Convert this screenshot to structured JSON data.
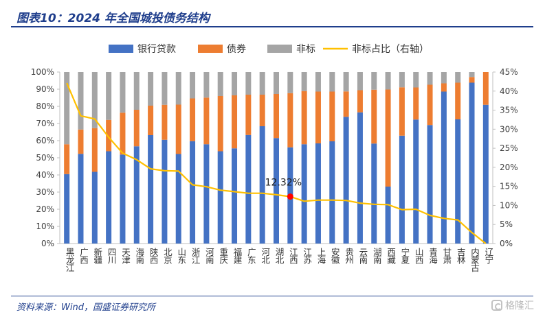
{
  "header": {
    "title": "图表10：2024 年全国城投债务结构"
  },
  "footer": {
    "source": "资料来源：Wind，国盛证券研究所",
    "watermark": "格隆汇"
  },
  "chart_data": {
    "type": "bar",
    "stacked": true,
    "percent_stacked": true,
    "categories": [
      "黑龙江",
      "广西",
      "新疆",
      "四川",
      "天津",
      "海南",
      "陕西",
      "北京",
      "山东",
      "浙江",
      "河南",
      "重庆",
      "福建",
      "广东",
      "河北",
      "湖北",
      "江西",
      "江苏",
      "上海",
      "安徽",
      "贵州",
      "云南",
      "湖南",
      "西藏",
      "宁夏",
      "山西",
      "青海",
      "甘肃",
      "吉林",
      "内蒙古",
      "辽宁"
    ],
    "series": [
      {
        "name": "银行贷款",
        "color": "#4472c4",
        "axis": "left",
        "values": [
          40.5,
          52.3,
          41.8,
          53.8,
          51.9,
          56.7,
          63.2,
          60.5,
          52.2,
          59.7,
          57.9,
          53.8,
          55.5,
          63.3,
          68.4,
          61.5,
          56.1,
          57.9,
          58.4,
          59.6,
          73.9,
          76.5,
          58.3,
          33.2,
          62.9,
          72.3,
          69.1,
          88.6,
          72.4,
          93.8,
          80.9
        ]
      },
      {
        "name": "债券",
        "color": "#ed7d31",
        "axis": "left",
        "values": [
          17.4,
          14.2,
          25.5,
          18.3,
          24.4,
          21.3,
          17.2,
          20.4,
          28.8,
          24.9,
          27.2,
          32.2,
          30.9,
          23.5,
          18.4,
          25.7,
          31.6,
          31.0,
          30.2,
          29.0,
          14.8,
          12.9,
          31.4,
          56.6,
          28.2,
          18.7,
          23.5,
          4.8,
          21.4,
          3.3,
          19.1
        ]
      },
      {
        "name": "非标",
        "color": "#a5a5a5",
        "axis": "left",
        "values": [
          42.1,
          33.5,
          32.7,
          27.9,
          23.7,
          22.0,
          19.6,
          19.1,
          19.0,
          15.4,
          14.9,
          14.0,
          13.6,
          13.2,
          13.2,
          12.8,
          12.32,
          11.1,
          11.4,
          11.4,
          11.3,
          10.6,
          10.3,
          10.2,
          8.9,
          9.0,
          7.4,
          6.6,
          6.2,
          2.9,
          0.0
        ]
      },
      {
        "name": "非标占比（右轴）",
        "color": "#ffc000",
        "axis": "right",
        "type": "line",
        "values": [
          42.1,
          33.5,
          32.7,
          27.9,
          23.7,
          22.0,
          19.6,
          19.1,
          19.0,
          15.4,
          14.9,
          14.0,
          13.6,
          13.2,
          13.2,
          12.8,
          12.32,
          11.1,
          11.4,
          11.4,
          11.3,
          10.6,
          10.3,
          10.2,
          8.9,
          9.0,
          7.4,
          6.6,
          6.2,
          2.9,
          0.0
        ]
      }
    ],
    "left_axis": {
      "min": 0,
      "max": 100,
      "step": 10,
      "ticks": [
        "0%",
        "10%",
        "20%",
        "30%",
        "40%",
        "50%",
        "60%",
        "70%",
        "80%",
        "90%",
        "100%"
      ]
    },
    "right_axis": {
      "min": 0,
      "max": 45,
      "step": 5,
      "ticks": [
        "0%",
        "5%",
        "10%",
        "15%",
        "20%",
        "25%",
        "30%",
        "35%",
        "40%",
        "45%"
      ]
    },
    "legend": {
      "position": "top",
      "items": [
        "银行贷款",
        "债券",
        "非标",
        "非标占比（右轴）"
      ]
    },
    "annotation": {
      "category": "江西",
      "value": 12.32,
      "label": "12.32%",
      "marker_color": "#ff0000"
    },
    "grid": false
  }
}
